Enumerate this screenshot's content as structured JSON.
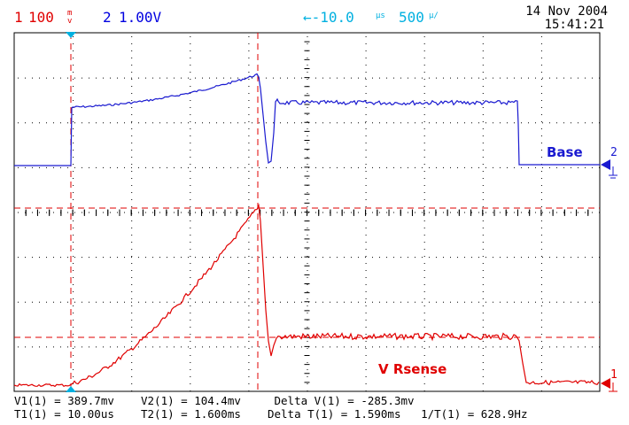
{
  "header": {
    "ch1": {
      "number": "1",
      "scale": "100",
      "unit_top": "m",
      "unit_bottom": "v",
      "color": "#e00000"
    },
    "ch2": {
      "number": "2",
      "scale": "1.00V",
      "color": "#0000e0"
    },
    "trigger_pos": "←-10.0",
    "trigger_unit": "µs",
    "timebase": "500",
    "timebase_unit": "µ/",
    "date": "14 Nov 2004",
    "time": "15:41:21",
    "accent": "#00b0e0"
  },
  "labels": {
    "base": "Base",
    "vrsense": "V Rsense"
  },
  "markers": {
    "ch2_marker": "2",
    "ch1_marker": "1"
  },
  "measurements": {
    "row1": "V1(1) = 389.7mv    V2(1) = 104.4mv     Delta V(1) = -285.3mv",
    "row2": "T1(1) = 10.00us    T2(1) = 1.600ms    Delta T(1) = 1.590ms   1/T(1) = 628.9Hz"
  }
}
